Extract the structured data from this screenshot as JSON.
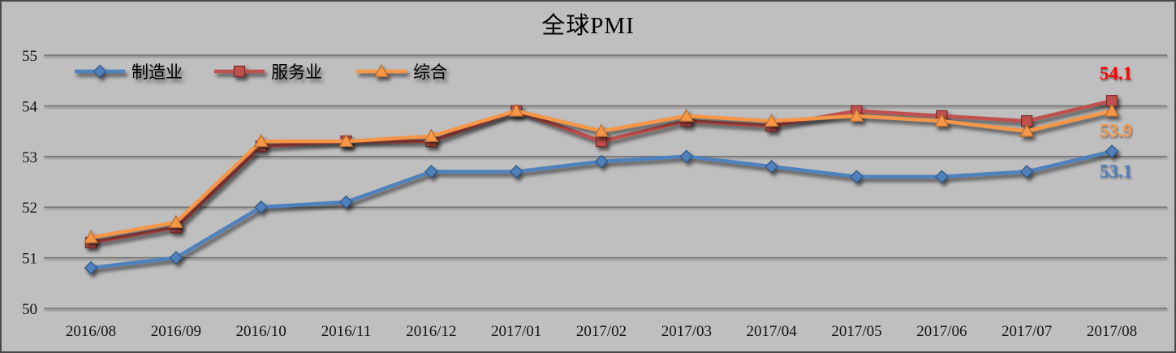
{
  "chart": {
    "background_color": "#BFBFBF",
    "border_color": "#4A4A4A",
    "gridline_color": "#6E6E6E",
    "axis_text_color": "#121212"
  },
  "chart_data": {
    "type": "line",
    "title": "全球PMI",
    "categories": [
      "2016/08",
      "2016/09",
      "2016/10",
      "2016/11",
      "2016/12",
      "2017/01",
      "2017/02",
      "2017/03",
      "2017/04",
      "2017/05",
      "2017/06",
      "2017/07",
      "2017/08"
    ],
    "series": [
      {
        "id": "manufacturing",
        "name": "制造业",
        "marker": "diamond",
        "color": "#4F81BD",
        "marker_stroke": "#2F5483",
        "values": [
          50.8,
          51.0,
          52.0,
          52.1,
          52.7,
          52.7,
          52.9,
          53.0,
          52.8,
          52.6,
          52.6,
          52.7,
          53.1
        ],
        "end_label": "53.1",
        "end_label_color": "#4F81BD",
        "end_label_position": "below"
      },
      {
        "id": "services",
        "name": "服务业",
        "marker": "square",
        "color": "#C0504D",
        "marker_stroke": "#772C2A",
        "values": [
          51.3,
          51.6,
          53.2,
          53.3,
          53.3,
          53.9,
          53.3,
          53.7,
          53.6,
          53.9,
          53.8,
          53.7,
          54.1
        ],
        "end_label": "54.1",
        "end_label_color": "#FF0000",
        "end_label_position": "above"
      },
      {
        "id": "composite",
        "name": "综合",
        "marker": "triangle",
        "color": "#F79646",
        "marker_stroke": "#B66D31",
        "values": [
          51.4,
          51.7,
          53.3,
          53.3,
          53.4,
          53.9,
          53.5,
          53.8,
          53.7,
          53.8,
          53.7,
          53.5,
          53.9
        ],
        "end_label": "53.9",
        "end_label_color": "#F79646",
        "end_label_position": "below"
      }
    ],
    "ylim": [
      50,
      55
    ],
    "ytick_interval": 1,
    "grid": true,
    "legend_position": "top-left-inside",
    "legend_labels": [
      "制造业",
      "服务业",
      "综合"
    ]
  }
}
